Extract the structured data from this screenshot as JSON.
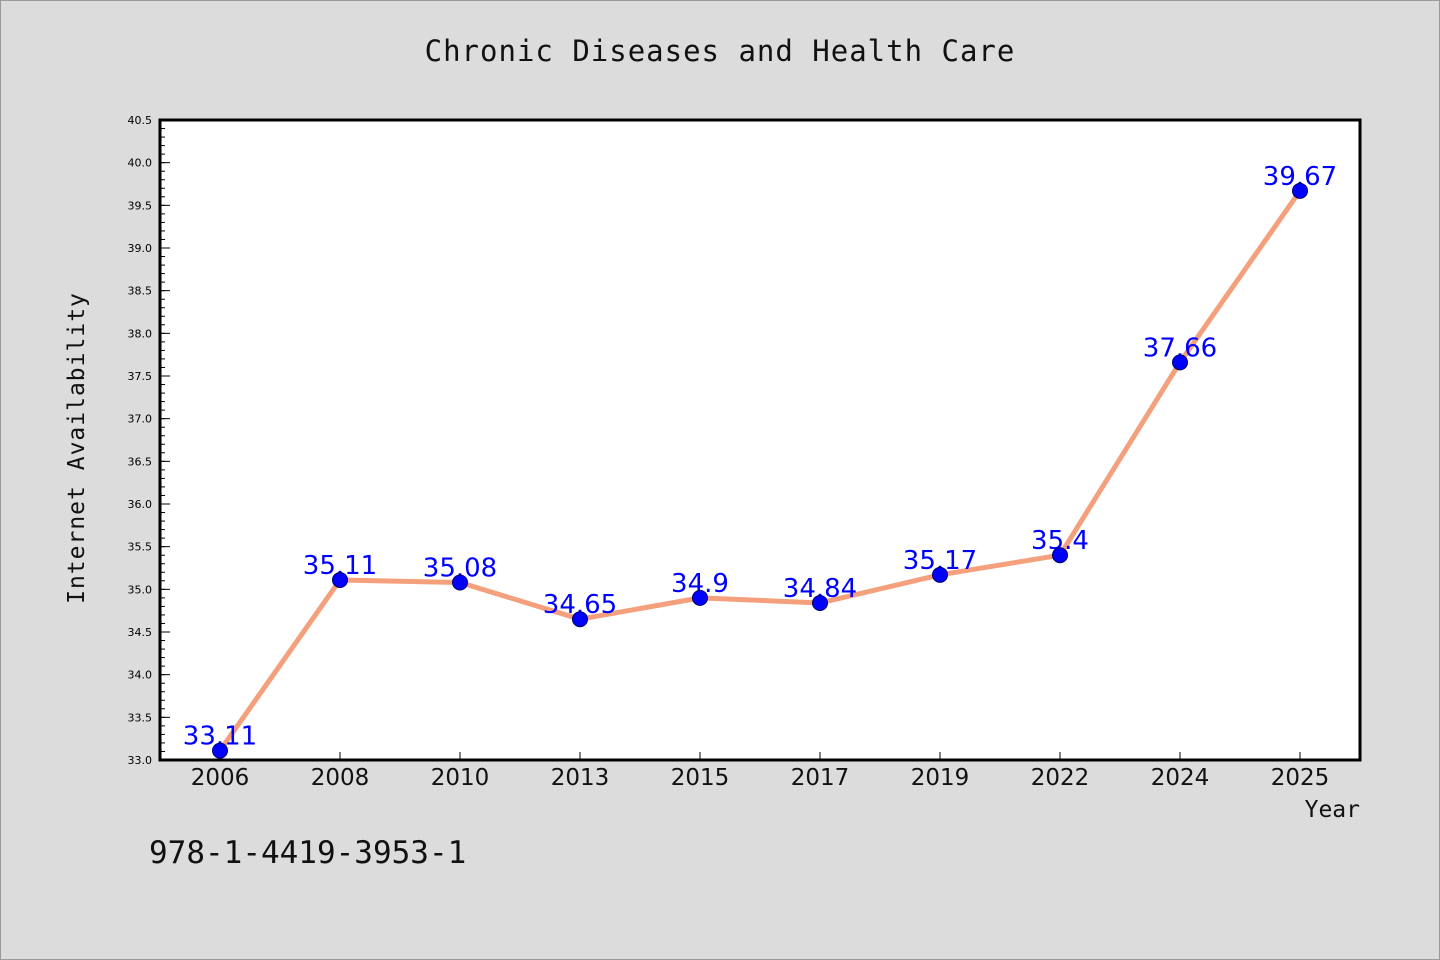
{
  "chart_data": {
    "type": "line",
    "title": "Chronic Diseases and Health Care",
    "xlabel": "Year",
    "ylabel": "Internet Availability",
    "categories": [
      "2006",
      "2008",
      "2010",
      "2013",
      "2015",
      "2017",
      "2019",
      "2022",
      "2024",
      "2025"
    ],
    "series": [
      {
        "values": [
          33.11,
          35.11,
          35.08,
          34.65,
          34.9,
          34.84,
          35.17,
          35.4,
          37.66,
          39.67
        ],
        "labels": [
          "33.11",
          "35.11",
          "35.08",
          "34.65",
          "34.9",
          "34.84",
          "35.17",
          "35.4",
          "37.66",
          "39.67"
        ]
      }
    ],
    "ylim": [
      33.0,
      40.5
    ],
    "yticks": [
      "33.0",
      "33.5",
      "34.0",
      "34.5",
      "35.0",
      "35.5",
      "36.0",
      "36.5",
      "37.0",
      "37.5",
      "38.0",
      "38.5",
      "39.0",
      "39.5",
      "40.0",
      "40.5"
    ],
    "grid": false,
    "colors": {
      "line": "#f4a07c",
      "marker": "#0000ff",
      "data_label": "#0000ff",
      "background": "#dcdcdc",
      "plot_background": "#ffffff"
    }
  },
  "footer": {
    "isbn": "978-1-4419-3953-1"
  }
}
